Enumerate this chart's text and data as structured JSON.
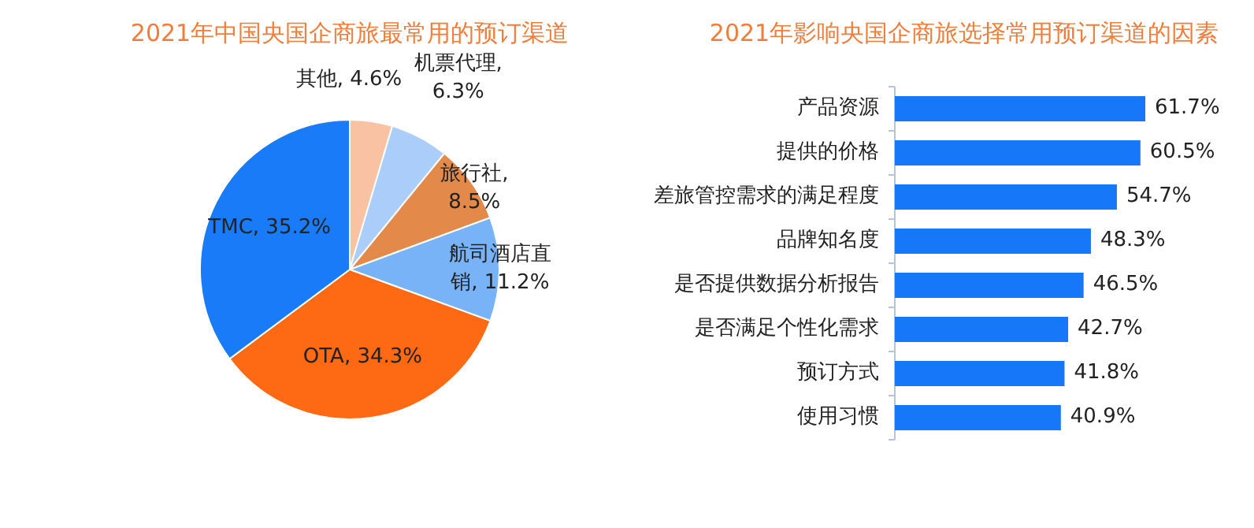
{
  "chart_data": [
    {
      "type": "pie",
      "title": "2021年中国央国企商旅最常用的预订渠道",
      "categories": [
        "其他",
        "机票代理",
        "旅行社",
        "航司酒店直销",
        "OTA",
        "TMC"
      ],
      "values": [
        4.6,
        6.3,
        8.5,
        11.2,
        34.3,
        35.2
      ],
      "colors": [
        "#f9c3a3",
        "#aacdf9",
        "#e38a4b",
        "#78b3f8",
        "#fe6a14",
        "#1a7bf8"
      ],
      "value_labels": [
        ", 4.6%",
        ", 6.3%",
        ", 8.5%",
        ", 11.2%",
        ", 34.3%",
        ", 35.2%"
      ]
    },
    {
      "type": "bar",
      "orientation": "horizontal",
      "title": "2021年影响央国企商旅选择常用预订渠道的因素",
      "categories": [
        "产品资源",
        "提供的价格",
        "差旅管控需求的满足程度",
        "品牌知名度",
        "是否提供数据分析报告",
        "是否满足个性化需求",
        "预订方式",
        "使用习惯"
      ],
      "series": [
        {
          "color": "#1677f8",
          "values": [
            61.7,
            60.5,
            54.7,
            48.3,
            46.5,
            42.7,
            41.8,
            40.9
          ],
          "value_labels": [
            "61.7%",
            "60.5%",
            "54.7%",
            "48.3%",
            "46.5%",
            "42.7%",
            "41.8%",
            "40.9%"
          ]
        }
      ]
    }
  ]
}
